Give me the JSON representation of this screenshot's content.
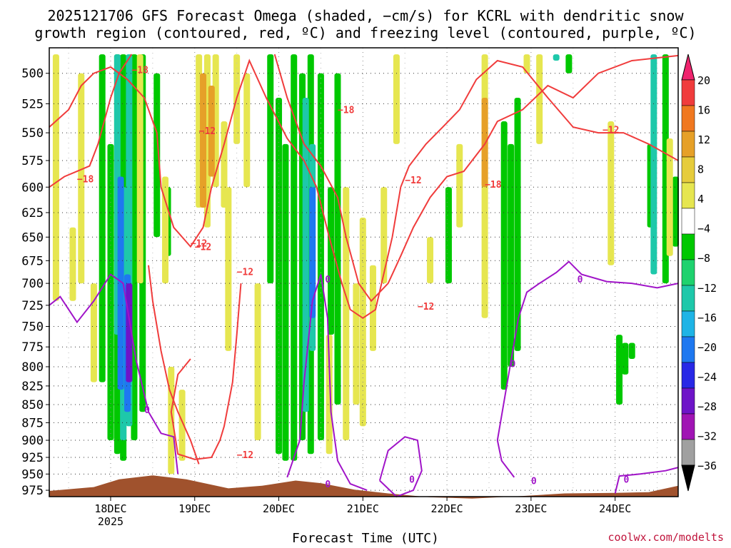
{
  "title_line1": "2025121706 GFS Forecast Omega (shaded, −cm/s) for KCRL with dendritic snow",
  "title_line2": "growth region (contoured, red, ºC) and freezing level (contoured, purple, ºC)",
  "credit": "coolwx.com/modelts",
  "chart_data": {
    "type": "heatmap",
    "title": "2025121706 GFS Forecast Omega (shaded, −cm/s) for KCRL with dendritic snow growth region (contoured, red, ºC) and freezing level (contoured, purple, ºC)",
    "xlabel": "Forecast Time (UTC)",
    "ylabel": "",
    "x_ticks": [
      {
        "day": 18,
        "label": "18DEC",
        "sublabel": "2025"
      },
      {
        "day": 19,
        "label": "19DEC",
        "sublabel": ""
      },
      {
        "day": 20,
        "label": "20DEC",
        "sublabel": ""
      },
      {
        "day": 21,
        "label": "21DEC",
        "sublabel": ""
      },
      {
        "day": 22,
        "label": "22DEC",
        "sublabel": ""
      },
      {
        "day": 23,
        "label": "23DEC",
        "sublabel": ""
      },
      {
        "day": 24,
        "label": "24DEC",
        "sublabel": ""
      }
    ],
    "xlim_days": [
      17.27,
      24.75
    ],
    "ylim_hpa": [
      985,
      480
    ],
    "y_ticks": [
      500,
      525,
      550,
      575,
      600,
      625,
      650,
      675,
      700,
      725,
      750,
      775,
      800,
      825,
      850,
      875,
      900,
      925,
      950,
      975
    ],
    "grid": true,
    "colorbar": {
      "labels": [
        "20",
        "16",
        "12",
        "8",
        "4",
        "−4",
        "−8",
        "−12",
        "−16",
        "−20",
        "−24",
        "−28",
        "−32",
        "−36"
      ],
      "colors": [
        "#f0246e",
        "#f03c3c",
        "#f07820",
        "#e6a028",
        "#e6cc3c",
        "#e6e650",
        "#ffffff",
        "#00c800",
        "#1ed26e",
        "#1ec8aa",
        "#1eb4e6",
        "#1e78f0",
        "#2828e6",
        "#6e14c8",
        "#a014b4",
        "#a0a0a0",
        "#000000"
      ]
    },
    "shading": [
      {
        "name": "upward",
        "color": "#00c800",
        "segments": [
          {
            "t": 17.9,
            "p0": 485,
            "p1": 820
          },
          {
            "t": 18.0,
            "p0": 560,
            "p1": 900
          },
          {
            "t": 18.08,
            "p0": 485,
            "p1": 920
          },
          {
            "t": 18.15,
            "p0": 485,
            "p1": 930
          },
          {
            "t": 18.28,
            "p0": 485,
            "p1": 900
          },
          {
            "t": 18.38,
            "p0": 485,
            "p1": 860
          },
          {
            "t": 18.55,
            "p0": 500,
            "p1": 650
          },
          {
            "t": 18.68,
            "p0": 600,
            "p1": 670
          },
          {
            "t": 19.9,
            "p0": 485,
            "p1": 700
          },
          {
            "t": 20.0,
            "p0": 520,
            "p1": 920
          },
          {
            "t": 20.08,
            "p0": 560,
            "p1": 930
          },
          {
            "t": 20.18,
            "p0": 485,
            "p1": 930
          },
          {
            "t": 20.28,
            "p0": 500,
            "p1": 900
          },
          {
            "t": 20.38,
            "p0": 485,
            "p1": 920
          },
          {
            "t": 20.5,
            "p0": 500,
            "p1": 900
          },
          {
            "t": 20.62,
            "p0": 600,
            "p1": 760
          },
          {
            "t": 20.7,
            "p0": 500,
            "p1": 850
          },
          {
            "t": 22.02,
            "p0": 600,
            "p1": 700
          },
          {
            "t": 22.68,
            "p0": 540,
            "p1": 830
          },
          {
            "t": 22.76,
            "p0": 560,
            "p1": 800
          },
          {
            "t": 22.84,
            "p0": 520,
            "p1": 780
          },
          {
            "t": 23.45,
            "p0": 485,
            "p1": 500
          },
          {
            "t": 24.05,
            "p0": 760,
            "p1": 850
          },
          {
            "t": 24.12,
            "p0": 770,
            "p1": 810
          },
          {
            "t": 24.2,
            "p0": 770,
            "p1": 790
          },
          {
            "t": 24.42,
            "p0": 560,
            "p1": 640
          },
          {
            "t": 24.6,
            "p0": 485,
            "p1": 700
          },
          {
            "t": 24.72,
            "p0": 590,
            "p1": 660
          }
        ]
      },
      {
        "name": "upward-strong",
        "color": "#1ec8aa",
        "segments": [
          {
            "t": 18.08,
            "p0": 485,
            "p1": 760
          },
          {
            "t": 18.15,
            "p0": 600,
            "p1": 900
          },
          {
            "t": 18.22,
            "p0": 485,
            "p1": 880
          },
          {
            "t": 20.32,
            "p0": 520,
            "p1": 860
          },
          {
            "t": 20.4,
            "p0": 560,
            "p1": 780
          },
          {
            "t": 24.46,
            "p0": 485,
            "p1": 690
          },
          {
            "t": 23.3,
            "p0": 485,
            "p1": 490
          }
        ]
      },
      {
        "name": "upward-stronger",
        "color": "#1e78f0",
        "segments": [
          {
            "t": 18.12,
            "p0": 590,
            "p1": 830
          },
          {
            "t": 18.2,
            "p0": 690,
            "p1": 860
          },
          {
            "t": 20.4,
            "p0": 600,
            "p1": 740
          }
        ]
      },
      {
        "name": "upward-strongest",
        "color": "#6e14c8",
        "segments": [
          {
            "t": 18.22,
            "p0": 700,
            "p1": 820
          }
        ]
      },
      {
        "name": "downward",
        "color": "#e6e650",
        "segments": [
          {
            "t": 17.35,
            "p0": 485,
            "p1": 720
          },
          {
            "t": 17.55,
            "p0": 640,
            "p1": 720
          },
          {
            "t": 17.65,
            "p0": 500,
            "p1": 700
          },
          {
            "t": 17.8,
            "p0": 700,
            "p1": 820
          },
          {
            "t": 18.35,
            "p0": 485,
            "p1": 700
          },
          {
            "t": 18.65,
            "p0": 590,
            "p1": 700
          },
          {
            "t": 18.72,
            "p0": 800,
            "p1": 950
          },
          {
            "t": 18.85,
            "p0": 830,
            "p1": 930
          },
          {
            "t": 19.05,
            "p0": 485,
            "p1": 620
          },
          {
            "t": 19.15,
            "p0": 485,
            "p1": 640
          },
          {
            "t": 19.25,
            "p0": 485,
            "p1": 600
          },
          {
            "t": 19.35,
            "p0": 540,
            "p1": 620
          },
          {
            "t": 19.4,
            "p0": 600,
            "p1": 780
          },
          {
            "t": 19.5,
            "p0": 485,
            "p1": 560
          },
          {
            "t": 19.62,
            "p0": 500,
            "p1": 600
          },
          {
            "t": 19.75,
            "p0": 700,
            "p1": 900
          },
          {
            "t": 20.6,
            "p0": 760,
            "p1": 920
          },
          {
            "t": 20.8,
            "p0": 600,
            "p1": 900
          },
          {
            "t": 20.92,
            "p0": 700,
            "p1": 850
          },
          {
            "t": 21.0,
            "p0": 630,
            "p1": 880
          },
          {
            "t": 21.12,
            "p0": 680,
            "p1": 780
          },
          {
            "t": 21.25,
            "p0": 600,
            "p1": 700
          },
          {
            "t": 21.4,
            "p0": 485,
            "p1": 560
          },
          {
            "t": 21.8,
            "p0": 650,
            "p1": 700
          },
          {
            "t": 22.15,
            "p0": 560,
            "p1": 640
          },
          {
            "t": 22.45,
            "p0": 485,
            "p1": 740
          },
          {
            "t": 22.95,
            "p0": 485,
            "p1": 500
          },
          {
            "t": 23.1,
            "p0": 485,
            "p1": 560
          },
          {
            "t": 23.95,
            "p0": 540,
            "p1": 680
          },
          {
            "t": 24.65,
            "p0": 555,
            "p1": 670
          }
        ]
      },
      {
        "name": "downward-strong",
        "color": "#e6a028",
        "segments": [
          {
            "t": 19.1,
            "p0": 500,
            "p1": 620
          },
          {
            "t": 19.2,
            "p0": 510,
            "p1": 590
          },
          {
            "t": 22.45,
            "p0": 520,
            "p1": 600
          }
        ]
      }
    ],
    "contours": {
      "dgz_color": "#f03c3c",
      "freezing_color": "#a014c8",
      "dgz_labels": [
        "−18",
        "−12",
        "−18",
        "−12",
        "−12",
        "−18",
        "−12",
        "−18",
        "−12",
        "−12",
        "−12",
        "−12"
      ],
      "freezing_labels": [
        "0",
        "0",
        "0",
        "0",
        "0",
        "0",
        "0",
        "0"
      ]
    }
  }
}
